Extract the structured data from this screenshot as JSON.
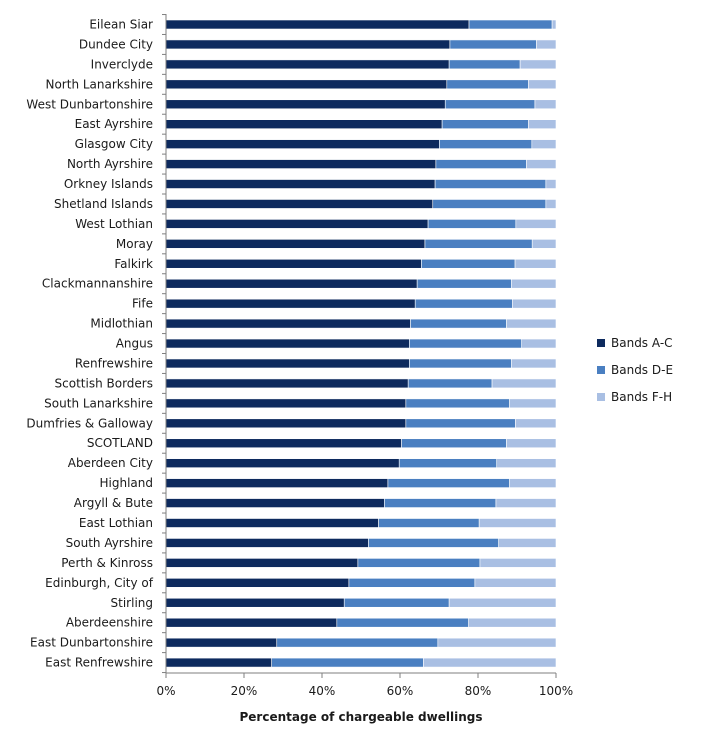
{
  "chart_data": {
    "type": "bar",
    "orientation": "horizontal",
    "stacked": true,
    "percent": true,
    "categories": [
      "Eilean Siar",
      "Dundee City",
      "Inverclyde",
      "North Lanarkshire",
      "West Dunbartonshire",
      "East Ayrshire",
      "Glasgow City",
      "North Ayrshire",
      "Orkney Islands",
      "Shetland Islands",
      "West Lothian",
      "Moray",
      "Falkirk",
      "Clackmannanshire",
      "Fife",
      "Midlothian",
      "Angus",
      "Renfrewshire",
      "Scottish Borders",
      "South Lanarkshire",
      "Dumfries & Galloway",
      "SCOTLAND",
      "Aberdeen City",
      "Highland",
      "Argyll & Bute",
      "East Lothian",
      "South Ayrshire",
      "Perth & Kinross",
      "Edinburgh, City of",
      "Stirling",
      "Aberdeenshire",
      "East Dunbartonshire",
      "East Renfrewshire"
    ],
    "series": [
      {
        "name": "Bands A-C",
        "color": "#0d2a5e",
        "values": [
          77.7,
          72.8,
          72.6,
          72.0,
          71.6,
          70.8,
          70.1,
          69.2,
          69.0,
          68.4,
          67.2,
          66.4,
          65.5,
          64.4,
          63.9,
          62.7,
          62.4,
          62.4,
          62.1,
          61.5,
          61.5,
          60.4,
          59.8,
          56.9,
          56.0,
          54.5,
          51.9,
          49.2,
          46.9,
          45.7,
          43.8,
          28.4,
          27.1
        ]
      },
      {
        "name": "Bands D-E",
        "color": "#4a7fc1",
        "values": [
          21.3,
          22.2,
          18.2,
          20.9,
          23.0,
          22.1,
          23.7,
          23.2,
          28.4,
          29.0,
          22.5,
          27.5,
          24.0,
          24.2,
          24.9,
          24.6,
          28.8,
          26.2,
          21.5,
          26.6,
          28.1,
          26.9,
          25.0,
          31.2,
          28.6,
          25.8,
          33.4,
          31.3,
          32.3,
          26.9,
          33.8,
          41.3,
          38.9
        ]
      },
      {
        "name": "Bands F-H",
        "color": "#a9bfe3",
        "values": [
          1.0,
          5.0,
          9.2,
          7.1,
          5.4,
          7.1,
          6.2,
          7.6,
          2.6,
          2.6,
          10.3,
          6.1,
          10.5,
          11.4,
          11.2,
          12.7,
          8.8,
          11.4,
          16.4,
          11.9,
          10.4,
          12.7,
          15.2,
          11.9,
          15.4,
          19.7,
          14.7,
          19.5,
          20.8,
          27.4,
          22.4,
          30.3,
          34.0
        ]
      }
    ],
    "x_ticks": [
      "0%",
      "20%",
      "40%",
      "60%",
      "80%",
      "100%"
    ],
    "xlim": [
      0,
      100
    ],
    "xlabel": "Percentage of chargeable dwellings",
    "ylabel": "",
    "title": "",
    "grid": false,
    "legend_position": "right"
  }
}
